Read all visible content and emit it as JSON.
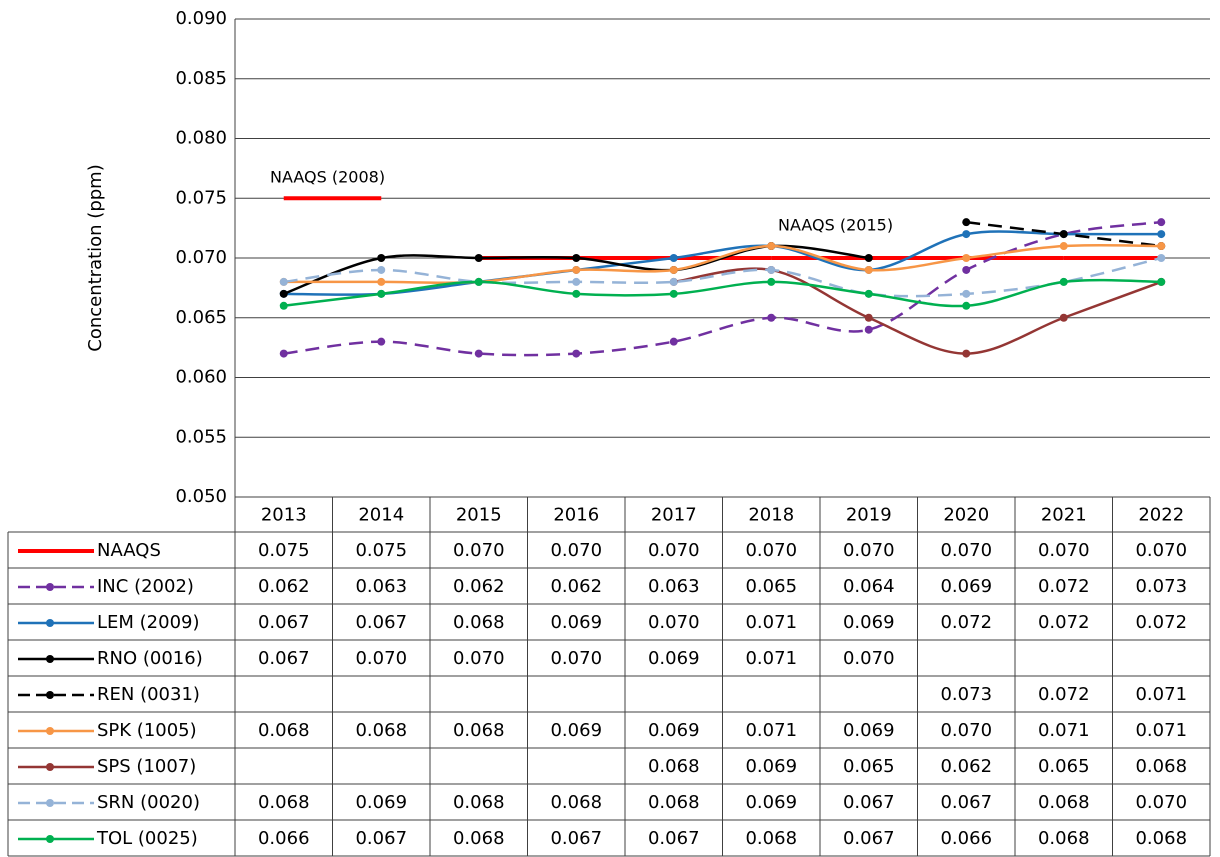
{
  "chart_data": {
    "type": "line",
    "y_label": "Concentration (ppm)",
    "categories": [
      "2013",
      "2014",
      "2015",
      "2016",
      "2017",
      "2018",
      "2019",
      "2020",
      "2021",
      "2022"
    ],
    "ylim": [
      0.05,
      0.09
    ],
    "yticks": [
      {
        "value": 0.05,
        "label": "0.050"
      },
      {
        "value": 0.055,
        "label": "0.055"
      },
      {
        "value": 0.06,
        "label": "0.060"
      },
      {
        "value": 0.065,
        "label": "0.065"
      },
      {
        "value": 0.07,
        "label": "0.070"
      },
      {
        "value": 0.075,
        "label": "0.075"
      },
      {
        "value": 0.08,
        "label": "0.080"
      },
      {
        "value": 0.085,
        "label": "0.085"
      },
      {
        "value": 0.09,
        "label": "0.090"
      }
    ],
    "grid": true,
    "data_table": true,
    "annotations": [
      "NAAQS (2008)",
      "NAAQS (2015)"
    ],
    "series": [
      {
        "name": "NAAQS",
        "color": "#ff0000",
        "width": 4,
        "marker": false,
        "dash": false,
        "smooth": false,
        "break_on_change": true,
        "values": [
          0.075,
          0.075,
          0.07,
          0.07,
          0.07,
          0.07,
          0.07,
          0.07,
          0.07,
          0.07
        ],
        "value_labels": [
          "0.075",
          "0.075",
          "0.070",
          "0.070",
          "0.070",
          "0.070",
          "0.070",
          "0.070",
          "0.070",
          "0.070"
        ]
      },
      {
        "name": "INC (2002)",
        "color": "#7030a0",
        "width": 2.5,
        "marker": true,
        "dash": true,
        "smooth": true,
        "values": [
          0.062,
          0.063,
          0.062,
          0.062,
          0.063,
          0.065,
          0.064,
          0.069,
          0.072,
          0.073
        ],
        "value_labels": [
          "0.062",
          "0.063",
          "0.062",
          "0.062",
          "0.063",
          "0.065",
          "0.064",
          "0.069",
          "0.072",
          "0.073"
        ]
      },
      {
        "name": "LEM (2009)",
        "color": "#1f72b8",
        "width": 2.5,
        "marker": true,
        "dash": false,
        "smooth": true,
        "values": [
          0.067,
          0.067,
          0.068,
          0.069,
          0.07,
          0.071,
          0.069,
          0.072,
          0.072,
          0.072
        ],
        "value_labels": [
          "0.067",
          "0.067",
          "0.068",
          "0.069",
          "0.070",
          "0.071",
          "0.069",
          "0.072",
          "0.072",
          "0.072"
        ]
      },
      {
        "name": "RNO (0016)",
        "color": "#000000",
        "width": 2.5,
        "marker": true,
        "dash": false,
        "smooth": true,
        "values": [
          0.067,
          0.07,
          0.07,
          0.07,
          0.069,
          0.071,
          0.07,
          null,
          null,
          null
        ],
        "value_labels": [
          "0.067",
          "0.070",
          "0.070",
          "0.070",
          "0.069",
          "0.071",
          "0.070",
          null,
          null,
          null
        ]
      },
      {
        "name": "REN (0031)",
        "color": "#000000",
        "width": 2.5,
        "marker": true,
        "dash": true,
        "smooth": true,
        "values": [
          null,
          null,
          null,
          null,
          null,
          null,
          null,
          0.073,
          0.072,
          0.071
        ],
        "value_labels": [
          null,
          null,
          null,
          null,
          null,
          null,
          null,
          "0.073",
          "0.072",
          "0.071"
        ]
      },
      {
        "name": "SPK (1005)",
        "color": "#f79646",
        "width": 2.5,
        "marker": true,
        "dash": false,
        "smooth": true,
        "values": [
          0.068,
          0.068,
          0.068,
          0.069,
          0.069,
          0.071,
          0.069,
          0.07,
          0.071,
          0.071
        ],
        "value_labels": [
          "0.068",
          "0.068",
          "0.068",
          "0.069",
          "0.069",
          "0.071",
          "0.069",
          "0.070",
          "0.071",
          "0.071"
        ]
      },
      {
        "name": "SPS (1007)",
        "color": "#943634",
        "width": 2.5,
        "marker": true,
        "dash": false,
        "smooth": true,
        "values": [
          null,
          null,
          null,
          null,
          0.068,
          0.069,
          0.065,
          0.062,
          0.065,
          0.068
        ],
        "value_labels": [
          null,
          null,
          null,
          null,
          "0.068",
          "0.069",
          "0.065",
          "0.062",
          "0.065",
          "0.068"
        ]
      },
      {
        "name": "SRN (0020)",
        "color": "#95b3d7",
        "width": 2.5,
        "marker": true,
        "dash": true,
        "smooth": true,
        "values": [
          0.068,
          0.069,
          0.068,
          0.068,
          0.068,
          0.069,
          0.067,
          0.067,
          0.068,
          0.07
        ],
        "value_labels": [
          "0.068",
          "0.069",
          "0.068",
          "0.068",
          "0.068",
          "0.069",
          "0.067",
          "0.067",
          "0.068",
          "0.070"
        ]
      },
      {
        "name": "TOL (0025)",
        "color": "#00b050",
        "width": 2.5,
        "marker": true,
        "dash": false,
        "smooth": true,
        "values": [
          0.066,
          0.067,
          0.068,
          0.067,
          0.067,
          0.068,
          0.067,
          0.066,
          0.068,
          0.068
        ],
        "value_labels": [
          "0.066",
          "0.067",
          "0.068",
          "0.067",
          "0.067",
          "0.068",
          "0.067",
          "0.066",
          "0.068",
          "0.068"
        ]
      }
    ]
  }
}
